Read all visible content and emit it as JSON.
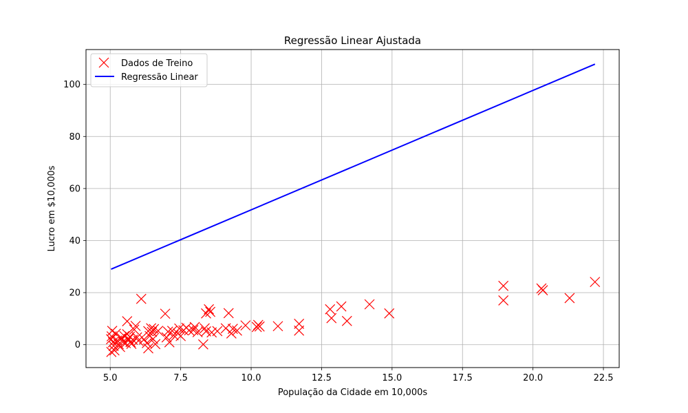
{
  "chart_data": {
    "type": "scatter",
    "title": "Regressão Linear Ajustada",
    "xlabel": "População da Cidade em 10,000s",
    "ylabel": "Lucro em $10,000s",
    "xlim": [
      4.14,
      23.06
    ],
    "ylim": [
      -8.8,
      113.4
    ],
    "xticks": [
      5.0,
      7.5,
      10.0,
      12.5,
      15.0,
      17.5,
      20.0,
      22.5
    ],
    "xtick_labels": [
      "5.0",
      "7.5",
      "10.0",
      "12.5",
      "15.0",
      "17.5",
      "20.0",
      "22.5"
    ],
    "yticks": [
      0,
      20,
      40,
      60,
      80,
      100
    ],
    "ytick_labels": [
      "0",
      "20",
      "40",
      "60",
      "80",
      "100"
    ],
    "grid": true,
    "legend_position": "top-left",
    "colors": {
      "scatter": "#ff0000",
      "line": "#0000ff",
      "grid": "#b0b0b0"
    },
    "series": [
      {
        "name": "Dados de Treino",
        "type": "scatter",
        "marker": "x",
        "points": [
          [
            5.07,
            5.3
          ],
          [
            5.05,
            3.2
          ],
          [
            5.03,
            2.1
          ],
          [
            5.1,
            0.9
          ],
          [
            5.12,
            -0.5
          ],
          [
            5.04,
            -2.8
          ],
          [
            5.15,
            -2.2
          ],
          [
            5.2,
            4.2
          ],
          [
            5.25,
            1.6
          ],
          [
            5.3,
            0.2
          ],
          [
            5.35,
            -0.9
          ],
          [
            5.4,
            2.6
          ],
          [
            5.45,
            1.1
          ],
          [
            5.5,
            3.3
          ],
          [
            5.55,
            0.6
          ],
          [
            5.6,
            9.0
          ],
          [
            5.6,
            4.0
          ],
          [
            5.65,
            2.2
          ],
          [
            5.7,
            3.1
          ],
          [
            5.72,
            1.0
          ],
          [
            5.75,
            0.3
          ],
          [
            5.8,
            1.9
          ],
          [
            5.85,
            5.8
          ],
          [
            5.9,
            7.2
          ],
          [
            5.95,
            2.8
          ],
          [
            6.0,
            1.5
          ],
          [
            6.1,
            17.6
          ],
          [
            6.2,
            2.0
          ],
          [
            6.3,
            0.6
          ],
          [
            6.35,
            5.2
          ],
          [
            6.4,
            3.3
          ],
          [
            6.45,
            6.3
          ],
          [
            6.48,
            4.9
          ],
          [
            6.52,
            2.2
          ],
          [
            6.55,
            6.0
          ],
          [
            6.35,
            -1.4
          ],
          [
            6.6,
            0.2
          ],
          [
            6.7,
            5.3
          ],
          [
            6.95,
            11.9
          ],
          [
            7.0,
            2.8
          ],
          [
            7.05,
            5.0
          ],
          [
            7.1,
            0.9
          ],
          [
            7.2,
            5.3
          ],
          [
            7.25,
            3.6
          ],
          [
            7.4,
            4.3
          ],
          [
            7.45,
            6.2
          ],
          [
            7.5,
            3.3
          ],
          [
            7.6,
            5.5
          ],
          [
            7.7,
            6.5
          ],
          [
            7.8,
            5.5
          ],
          [
            7.95,
            5.6
          ],
          [
            8.0,
            6.8
          ],
          [
            8.1,
            4.8
          ],
          [
            8.3,
            0.1
          ],
          [
            8.35,
            6.3
          ],
          [
            8.4,
            5.1
          ],
          [
            8.4,
            12.0
          ],
          [
            8.5,
            13.6
          ],
          [
            8.55,
            12.6
          ],
          [
            8.6,
            4.7
          ],
          [
            8.8,
            5.2
          ],
          [
            9.1,
            6.3
          ],
          [
            9.2,
            12.1
          ],
          [
            9.3,
            4.3
          ],
          [
            9.35,
            6.1
          ],
          [
            9.5,
            5.4
          ],
          [
            9.8,
            7.4
          ],
          [
            10.2,
            6.8
          ],
          [
            10.25,
            7.6
          ],
          [
            10.3,
            7.0
          ],
          [
            10.95,
            7.1
          ],
          [
            11.7,
            8.0
          ],
          [
            11.7,
            5.4
          ],
          [
            12.8,
            13.6
          ],
          [
            12.85,
            10.2
          ],
          [
            13.2,
            14.7
          ],
          [
            13.4,
            9.1
          ],
          [
            14.2,
            15.5
          ],
          [
            14.9,
            12.0
          ],
          [
            18.95,
            22.6
          ],
          [
            18.95,
            17.0
          ],
          [
            20.3,
            21.6
          ],
          [
            20.35,
            20.9
          ],
          [
            21.3,
            17.9
          ],
          [
            22.2,
            24.1
          ]
        ]
      },
      {
        "name": "Regressão Linear",
        "type": "line",
        "points": [
          [
            5.03,
            29.0
          ],
          [
            22.2,
            107.8
          ]
        ]
      }
    ]
  }
}
